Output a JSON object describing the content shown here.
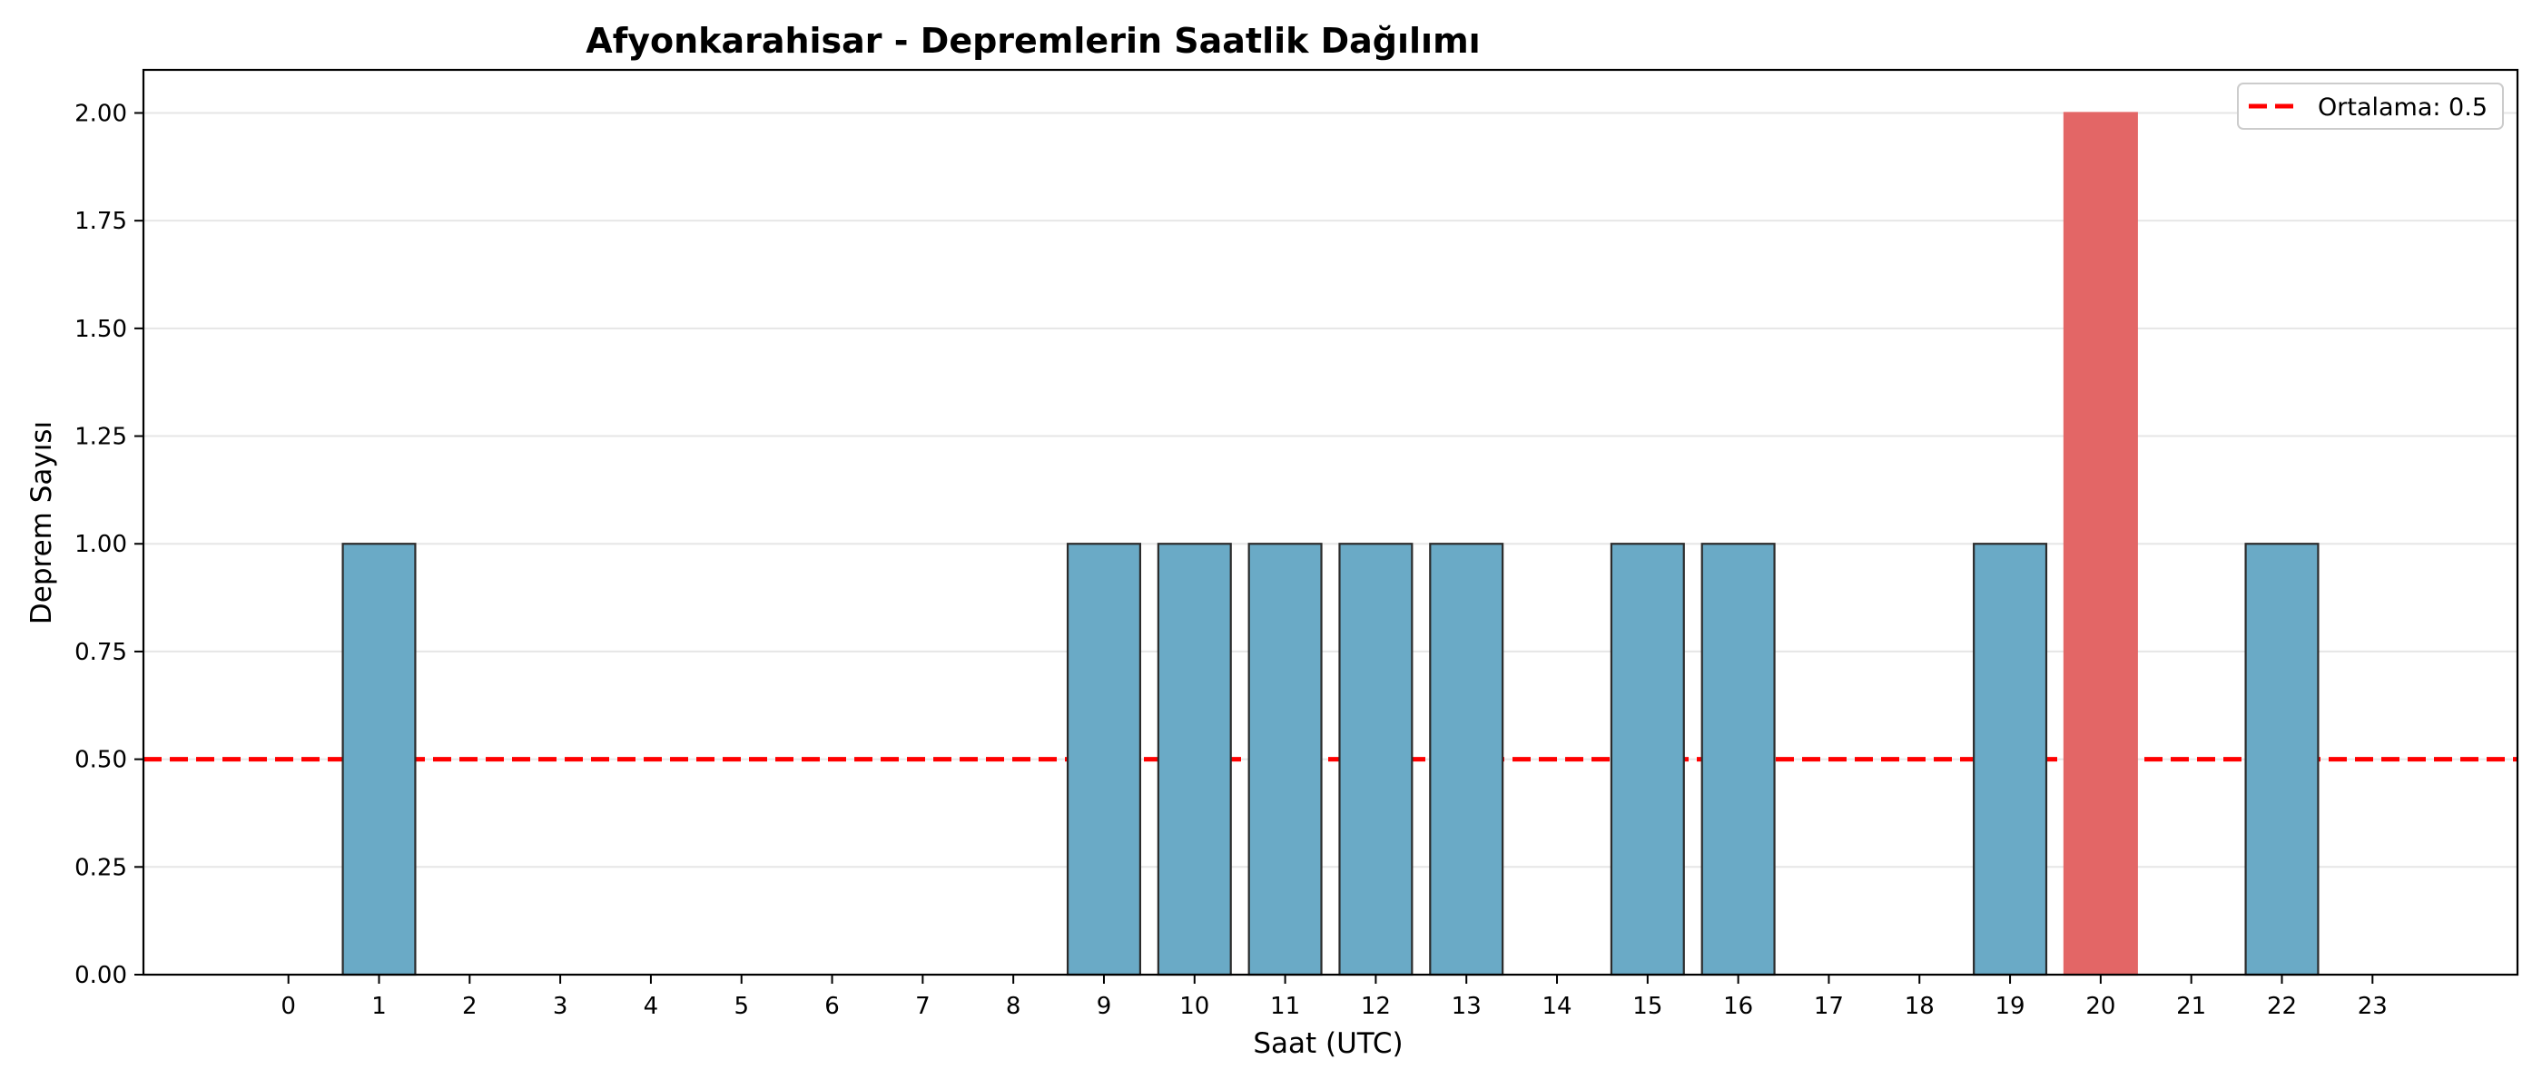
{
  "chart_data": {
    "type": "bar",
    "title": "Afyonkarahisar - Depremlerin Saatlik Dağılımı",
    "xlabel": "Saat (UTC)",
    "ylabel": "Deprem Sayısı",
    "categories": [
      "0",
      "1",
      "2",
      "3",
      "4",
      "5",
      "6",
      "7",
      "8",
      "9",
      "10",
      "11",
      "12",
      "13",
      "14",
      "15",
      "16",
      "17",
      "18",
      "19",
      "20",
      "21",
      "22",
      "23"
    ],
    "values": [
      0,
      1,
      0,
      0,
      0,
      0,
      0,
      0,
      0,
      1,
      1,
      1,
      1,
      1,
      0,
      1,
      1,
      0,
      0,
      1,
      2,
      0,
      1,
      0
    ],
    "ylim": [
      0,
      2.1
    ],
    "yticks": [
      "0.00",
      "0.25",
      "0.50",
      "0.75",
      "1.00",
      "1.25",
      "1.50",
      "1.75",
      "2.00"
    ],
    "ytick_values": [
      0,
      0.25,
      0.5,
      0.75,
      1.0,
      1.25,
      1.5,
      1.75,
      2.0
    ],
    "mean_line": {
      "value": 0.5,
      "label": "Ortalama: 0.5",
      "color": "#ff0000",
      "style": "dashed"
    },
    "highlight_index": 20,
    "colors": {
      "bar": "#6aaac6",
      "bar_edge": "#2b2b2b",
      "highlight": "#e36666",
      "grid": "#e6e6e6"
    },
    "grid": "horizontal",
    "legend_position": "top-right"
  }
}
